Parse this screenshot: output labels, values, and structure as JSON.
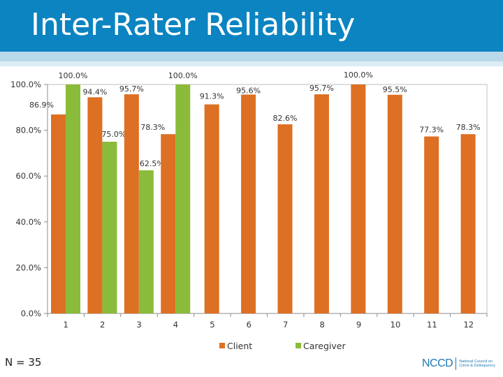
{
  "page": {
    "title": "Inter-Rater Reliability",
    "n_label": "N = 35"
  },
  "logo": {
    "abbr": "NCCD",
    "line1": "National Council on",
    "line2": "Crime & Delinquency"
  },
  "colors": {
    "title_bar": "#0b84c1",
    "client": "#dd7023",
    "caregiver": "#8bbb3a"
  },
  "chart_data": {
    "type": "bar",
    "categories": [
      "1",
      "2",
      "3",
      "4",
      "5",
      "6",
      "7",
      "8",
      "9",
      "10",
      "11",
      "12"
    ],
    "series": [
      {
        "name": "Client",
        "values": [
          86.9,
          94.4,
          95.7,
          78.3,
          91.3,
          95.6,
          82.6,
          95.7,
          100.0,
          95.5,
          77.3,
          78.3
        ],
        "labels": [
          "86.9%",
          "94.4%",
          "95.7%",
          "78.3%",
          "91.3%",
          "95.6%",
          "82.6%",
          "95.7%",
          "100.0%",
          "95.5%",
          "77.3%",
          "78.3%"
        ]
      },
      {
        "name": "Caregiver",
        "values": [
          100.0,
          75.0,
          62.5,
          100.0,
          null,
          null,
          null,
          null,
          null,
          null,
          null,
          null
        ],
        "labels": [
          "100.0%",
          "75.0%",
          "62.5%",
          "100.0%",
          null,
          null,
          null,
          null,
          null,
          null,
          null,
          null
        ]
      }
    ],
    "ylim": [
      0,
      100
    ],
    "yticks": [
      "0.0%",
      "20.0%",
      "40.0%",
      "60.0%",
      "80.0%",
      "100.0%"
    ],
    "legend": "bottom",
    "grid": false
  }
}
